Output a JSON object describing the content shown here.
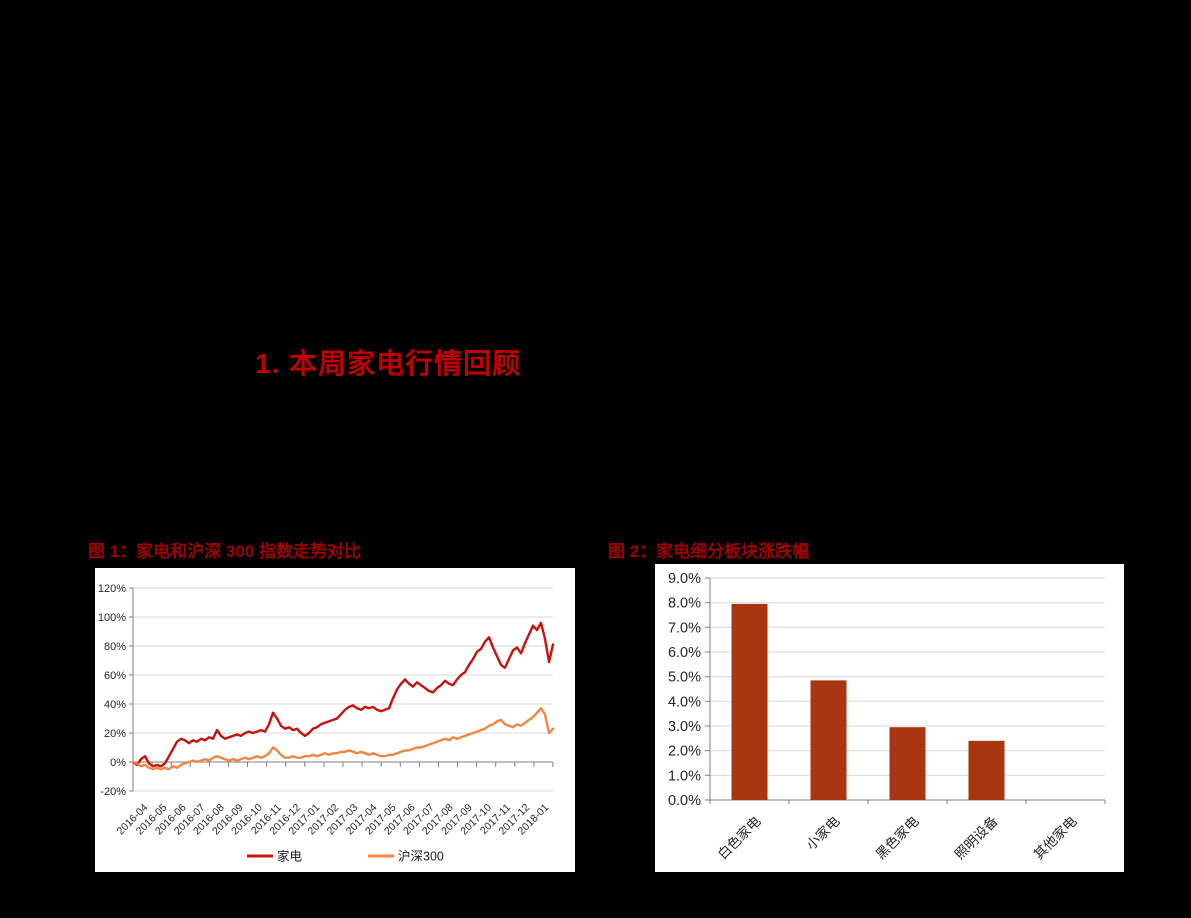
{
  "page": {
    "background": "#000000"
  },
  "heading": {
    "text": "1. 本周家电行情回顾",
    "color": "#C00000"
  },
  "figures": [
    {
      "caption": "图 1：家电和沪深 300 指数走势对比"
    },
    {
      "caption": "图 2：家电细分板块涨跌幅"
    }
  ],
  "chart_data": [
    {
      "type": "line",
      "title": "家电和沪深300指数走势对比",
      "x_tick_labels": [
        "2016-04",
        "2016-05",
        "2016-06",
        "2016-07",
        "2016-08",
        "2016-09",
        "2016-10",
        "2016-11",
        "2016-12",
        "2017-01",
        "2017-02",
        "2017-03",
        "2017-04",
        "2017-05",
        "2017-06",
        "2017-07",
        "2017-08",
        "2017-09",
        "2017-10",
        "2017-11",
        "2017-12",
        "2018-01"
      ],
      "ylim": [
        -20,
        120
      ],
      "y_ticks": [
        120,
        100,
        80,
        60,
        40,
        20,
        0,
        -20
      ],
      "y_tick_labels": [
        "120%",
        "100%",
        "80%",
        "60%",
        "40%",
        "20%",
        "0%",
        "-20%"
      ],
      "grid": true,
      "legend_position": "bottom",
      "series": [
        {
          "name": "家电",
          "color": "#C5120D",
          "values": [
            0,
            -2,
            2,
            4,
            -1,
            -3,
            -2,
            -3,
            -1,
            4,
            9,
            14,
            16,
            15,
            13,
            15,
            14,
            16,
            15,
            17,
            16,
            22,
            18,
            16,
            17,
            18,
            19,
            18,
            20,
            21,
            20,
            21,
            22,
            21,
            26,
            34,
            30,
            25,
            23,
            24,
            22,
            23,
            20,
            18,
            20,
            23,
            24,
            26,
            27,
            28,
            29,
            30,
            33,
            36,
            38,
            39,
            37,
            36,
            38,
            37,
            38,
            36,
            35,
            36,
            37,
            44,
            50,
            54,
            57,
            54,
            52,
            55,
            53,
            51,
            49,
            48,
            51,
            53,
            56,
            54,
            53,
            57,
            60,
            62,
            67,
            71,
            76,
            78,
            83,
            86,
            79,
            73,
            67,
            65,
            71,
            77,
            79,
            75,
            82,
            88,
            94,
            91,
            96,
            85,
            69,
            81
          ]
        },
        {
          "name": "沪深300",
          "color": "#EF8642",
          "values": [
            0,
            -1,
            -3,
            -2,
            -4,
            -5,
            -4,
            -5,
            -4,
            -5,
            -3,
            -4,
            -2,
            -1,
            0,
            1,
            0,
            1,
            2,
            1,
            3,
            4,
            3,
            2,
            1,
            2,
            1,
            2,
            3,
            2,
            3,
            4,
            3,
            4,
            6,
            10,
            8,
            5,
            3,
            3,
            4,
            3,
            3,
            4,
            4,
            5,
            4,
            5,
            6,
            5,
            6,
            6,
            7,
            7,
            8,
            7,
            6,
            7,
            6,
            5,
            6,
            5,
            4,
            4,
            5,
            5,
            6,
            7,
            8,
            8,
            9,
            10,
            10,
            11,
            12,
            13,
            14,
            15,
            16,
            15,
            17,
            16,
            17,
            18,
            19,
            20,
            21,
            22,
            23,
            25,
            26,
            28,
            29,
            26,
            25,
            24,
            26,
            25,
            27,
            29,
            31,
            34,
            37,
            33,
            20,
            23
          ]
        }
      ]
    },
    {
      "type": "bar",
      "title": "家电细分板块涨跌幅",
      "categories": [
        "白色家电",
        "小家电",
        "黑色家电",
        "照明设备",
        "其他家电"
      ],
      "values": [
        7.95,
        4.85,
        2.95,
        2.4,
        0
      ],
      "bar_color": "#A93511",
      "ylim": [
        0,
        9
      ],
      "y_ticks": [
        0,
        1,
        2,
        3,
        4,
        5,
        6,
        7,
        8,
        9
      ],
      "y_tick_labels": [
        "0.0%",
        "1.0%",
        "2.0%",
        "3.0%",
        "4.0%",
        "5.0%",
        "6.0%",
        "7.0%",
        "8.0%",
        "9.0%"
      ],
      "grid": true
    }
  ]
}
